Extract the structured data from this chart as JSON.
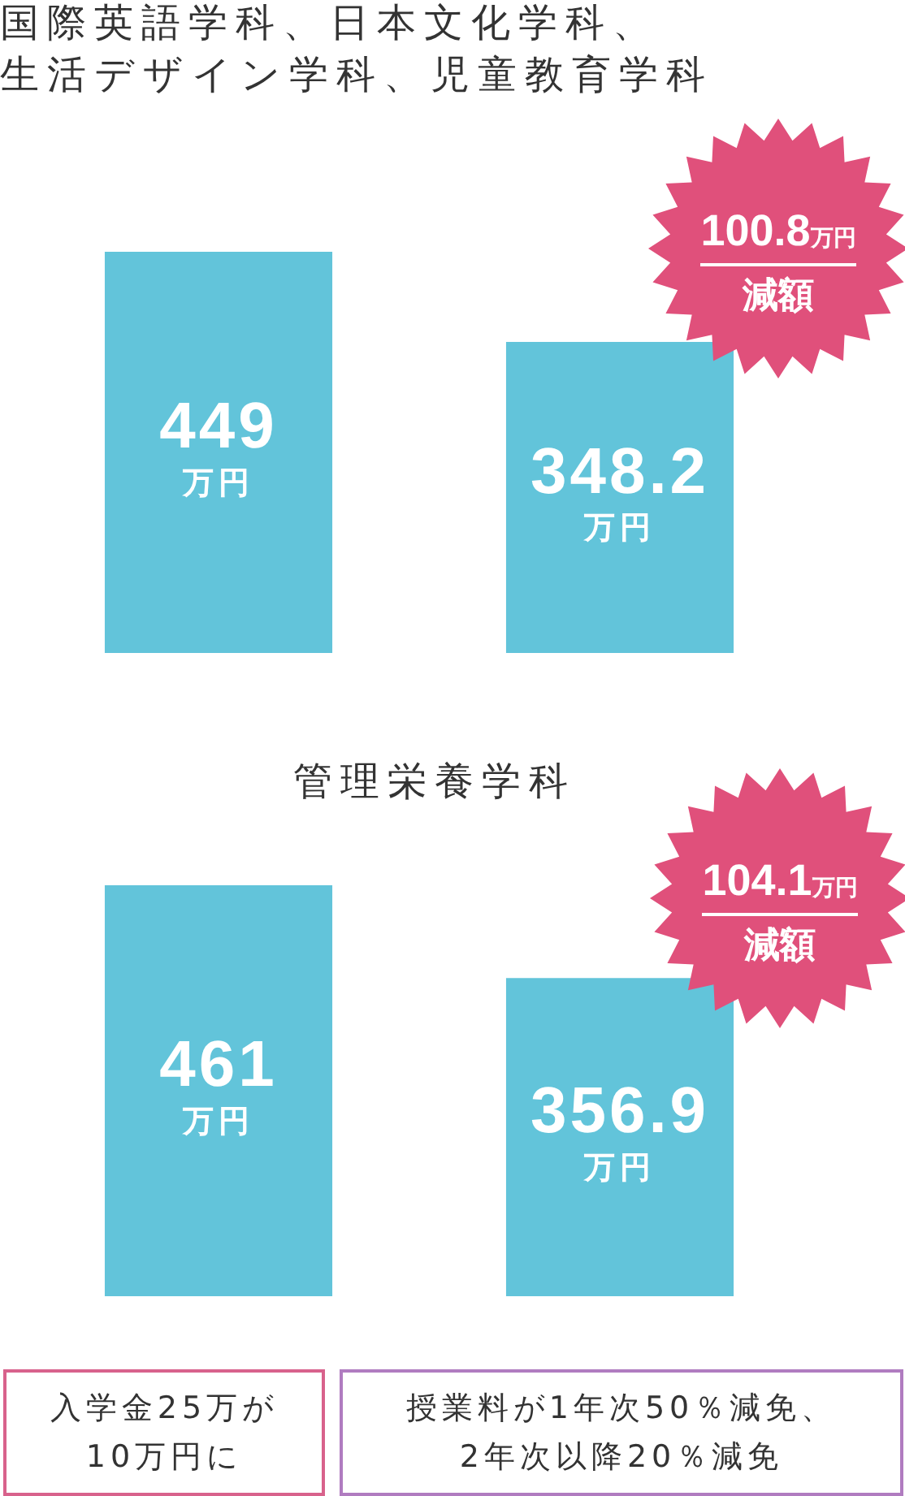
{
  "chart_data": [
    {
      "type": "bar",
      "title": "国際英語学科、日本文化学科、生活デザイン学科、児童教育学科",
      "categories": [
        null,
        null
      ],
      "values": [
        449,
        348.2
      ],
      "value_labels": [
        "449万円",
        "348.2万円"
      ],
      "color": "#62c4da",
      "tick_labels": false,
      "annotations": [
        "100.8万円",
        "減額"
      ]
    },
    {
      "type": "bar",
      "title": "管理栄養学科",
      "categories": [
        null,
        null
      ],
      "values": [
        461,
        356.9
      ],
      "value_labels": [
        "461万円",
        "356.9万円"
      ],
      "color": "#62c4da",
      "tick_labels": false,
      "annotations": [
        "104.1万円",
        "減額",
        "入学金25万が10万円に",
        "授業料が1年次50％減免、2年次以降20％減免"
      ]
    }
  ]
}
